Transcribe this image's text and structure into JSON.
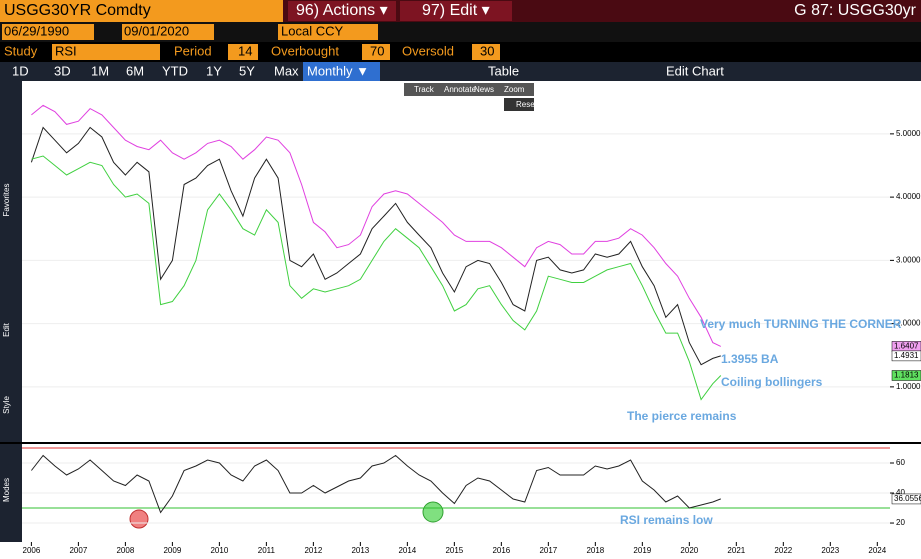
{
  "header": {
    "ticker": "USGG30YR Comdty",
    "actions": "96) Actions ▾",
    "edit": "97) Edit ▾",
    "page": "G 87: USGG30yr"
  },
  "range": {
    "start": "06/29/1990",
    "end": "09/01/2020",
    "currency": "Local CCY"
  },
  "study": {
    "label": "Study",
    "name": "RSI",
    "period_label": "Period",
    "period": "14",
    "overbought_label": "Overbought",
    "overbought": "70",
    "oversold_label": "Oversold",
    "oversold": "30"
  },
  "toolbar": {
    "periods": [
      "1D",
      "3D",
      "1M",
      "6M",
      "YTD",
      "1Y",
      "5Y",
      "Max"
    ],
    "frequency": "Monthly ▼",
    "table": "Table",
    "edit_chart": "Edit Chart"
  },
  "tools": [
    "Track",
    "Annotate",
    "News",
    "Zoom"
  ],
  "reset": "Reset",
  "side_labels": [
    "Favorites",
    "Edit",
    "Style",
    "Modes"
  ],
  "chart_data": [
    {
      "type": "line",
      "x": [
        2006,
        2006.25,
        2006.5,
        2006.75,
        2007,
        2007.25,
        2007.5,
        2007.75,
        2008,
        2008.25,
        2008.5,
        2008.75,
        2009,
        2009.25,
        2009.5,
        2009.75,
        2010,
        2010.25,
        2010.5,
        2010.75,
        2011,
        2011.25,
        2011.5,
        2011.75,
        2012,
        2012.25,
        2012.5,
        2012.75,
        2013,
        2013.25,
        2013.5,
        2013.75,
        2014,
        2014.25,
        2014.5,
        2014.75,
        2015,
        2015.25,
        2015.5,
        2015.75,
        2016,
        2016.25,
        2016.5,
        2016.75,
        2017,
        2017.25,
        2017.5,
        2017.75,
        2018,
        2018.25,
        2018.5,
        2018.75,
        2019,
        2019.25,
        2019.5,
        2019.75,
        2020,
        2020.25,
        2020.5,
        2020.67
      ],
      "series": [
        {
          "name": "Close",
          "color": "#222222",
          "values": [
            4.55,
            5.1,
            4.9,
            4.7,
            4.85,
            5.1,
            4.95,
            4.55,
            4.35,
            4.55,
            4.4,
            2.7,
            3.0,
            4.2,
            4.3,
            4.5,
            4.6,
            4.1,
            3.7,
            4.3,
            4.6,
            4.3,
            3.0,
            2.9,
            3.1,
            2.7,
            2.8,
            2.95,
            3.1,
            3.5,
            3.7,
            3.9,
            3.6,
            3.4,
            3.2,
            2.8,
            2.5,
            2.9,
            3.0,
            2.95,
            2.65,
            2.3,
            2.2,
            3.0,
            3.05,
            2.85,
            2.8,
            2.85,
            3.1,
            3.05,
            3.1,
            3.3,
            2.9,
            2.6,
            2.1,
            2.3,
            1.7,
            1.35,
            1.45,
            1.49
          ]
        },
        {
          "name": "Upper Band",
          "color": "#e040e0",
          "values": [
            5.3,
            5.45,
            5.35,
            5.15,
            5.2,
            5.4,
            5.3,
            5.1,
            4.9,
            4.8,
            4.75,
            4.9,
            4.7,
            4.6,
            4.7,
            4.85,
            4.9,
            4.8,
            4.6,
            4.75,
            4.95,
            4.9,
            4.7,
            4.2,
            3.6,
            3.45,
            3.2,
            3.25,
            3.4,
            3.85,
            4.05,
            4.1,
            4.05,
            3.9,
            3.75,
            3.6,
            3.4,
            3.3,
            3.3,
            3.3,
            3.2,
            3.05,
            2.9,
            3.2,
            3.3,
            3.25,
            3.1,
            3.1,
            3.3,
            3.3,
            3.35,
            3.5,
            3.4,
            3.2,
            2.95,
            2.75,
            2.4,
            2.1,
            1.7,
            1.64
          ]
        },
        {
          "name": "Lower Band",
          "color": "#40d040",
          "values": [
            4.6,
            4.65,
            4.5,
            4.35,
            4.45,
            4.55,
            4.5,
            4.2,
            4.0,
            4.05,
            3.9,
            2.3,
            2.35,
            2.6,
            3.0,
            3.8,
            4.05,
            3.8,
            3.5,
            3.4,
            3.8,
            3.6,
            2.6,
            2.4,
            2.55,
            2.5,
            2.55,
            2.6,
            2.7,
            3.0,
            3.3,
            3.5,
            3.35,
            3.2,
            2.9,
            2.6,
            2.2,
            2.3,
            2.55,
            2.6,
            2.3,
            2.05,
            1.9,
            2.2,
            2.75,
            2.7,
            2.65,
            2.65,
            2.75,
            2.85,
            2.9,
            2.95,
            2.6,
            2.2,
            1.85,
            1.85,
            1.4,
            0.8,
            1.05,
            1.18
          ]
        }
      ],
      "xlim": [
        2005.8,
        2024.27
      ],
      "ylim": [
        0.16,
        5.82
      ],
      "yticks": [
        {
          "value": 1,
          "label": "1.0000"
        },
        {
          "value": 2,
          "label": "2.0000"
        },
        {
          "value": 3,
          "label": "3.0000"
        },
        {
          "value": 4,
          "label": "4.0000"
        },
        {
          "value": 5,
          "label": "5.0000"
        }
      ],
      "xticks": [
        2006,
        2007,
        2008,
        2009,
        2010,
        2011,
        2012,
        2013,
        2014,
        2015,
        2016,
        2017,
        2018,
        2019,
        2020,
        2021,
        2022,
        2023,
        2024
      ],
      "last_labels": [
        {
          "value": 1.64,
          "label": "1.6407"
        },
        {
          "value": 1.49,
          "label": "1.4931"
        },
        {
          "value": 1.18,
          "label": "1.1813"
        }
      ],
      "annotations": [
        "Very much TURNING THE CORNER",
        "1.3955 BA",
        "Coiling bollingers",
        "The pierce remains"
      ]
    },
    {
      "type": "line",
      "x": [
        2006,
        2006.25,
        2006.5,
        2006.75,
        2007,
        2007.25,
        2007.5,
        2007.75,
        2008,
        2008.25,
        2008.5,
        2008.75,
        2009,
        2009.25,
        2009.5,
        2009.75,
        2010,
        2010.25,
        2010.5,
        2010.75,
        2011,
        2011.25,
        2011.5,
        2011.75,
        2012,
        2012.25,
        2012.5,
        2012.75,
        2013,
        2013.25,
        2013.5,
        2013.75,
        2014,
        2014.25,
        2014.5,
        2014.75,
        2015,
        2015.25,
        2015.5,
        2015.75,
        2016,
        2016.25,
        2016.5,
        2016.75,
        2017,
        2017.25,
        2017.5,
        2017.75,
        2018,
        2018.25,
        2018.5,
        2018.75,
        2019,
        2019.25,
        2019.5,
        2019.75,
        2020,
        2020.25,
        2020.5,
        2020.67
      ],
      "series": [
        {
          "name": "RSI",
          "color": "#222222",
          "values": [
            55,
            65,
            58,
            52,
            56,
            62,
            55,
            48,
            45,
            52,
            48,
            27,
            38,
            55,
            58,
            62,
            60,
            52,
            48,
            58,
            62,
            55,
            40,
            40,
            45,
            40,
            44,
            48,
            50,
            58,
            60,
            65,
            58,
            52,
            48,
            40,
            33,
            45,
            50,
            48,
            42,
            36,
            34,
            55,
            57,
            52,
            52,
            52,
            58,
            56,
            58,
            62,
            48,
            42,
            34,
            38,
            30,
            32,
            34,
            36.06
          ]
        }
      ],
      "xlim": [
        2005.8,
        2024.27
      ],
      "ylim": [
        8.7,
        72
      ],
      "yticks": [
        20,
        40,
        60
      ],
      "levels": [
        {
          "value": 70,
          "color": "#e03030"
        },
        {
          "value": 30,
          "color": "#30c030"
        }
      ],
      "last_labels": [
        {
          "value": 36.06,
          "label": "36.0556"
        }
      ],
      "annotations": [
        "RSI remains low"
      ]
    }
  ]
}
